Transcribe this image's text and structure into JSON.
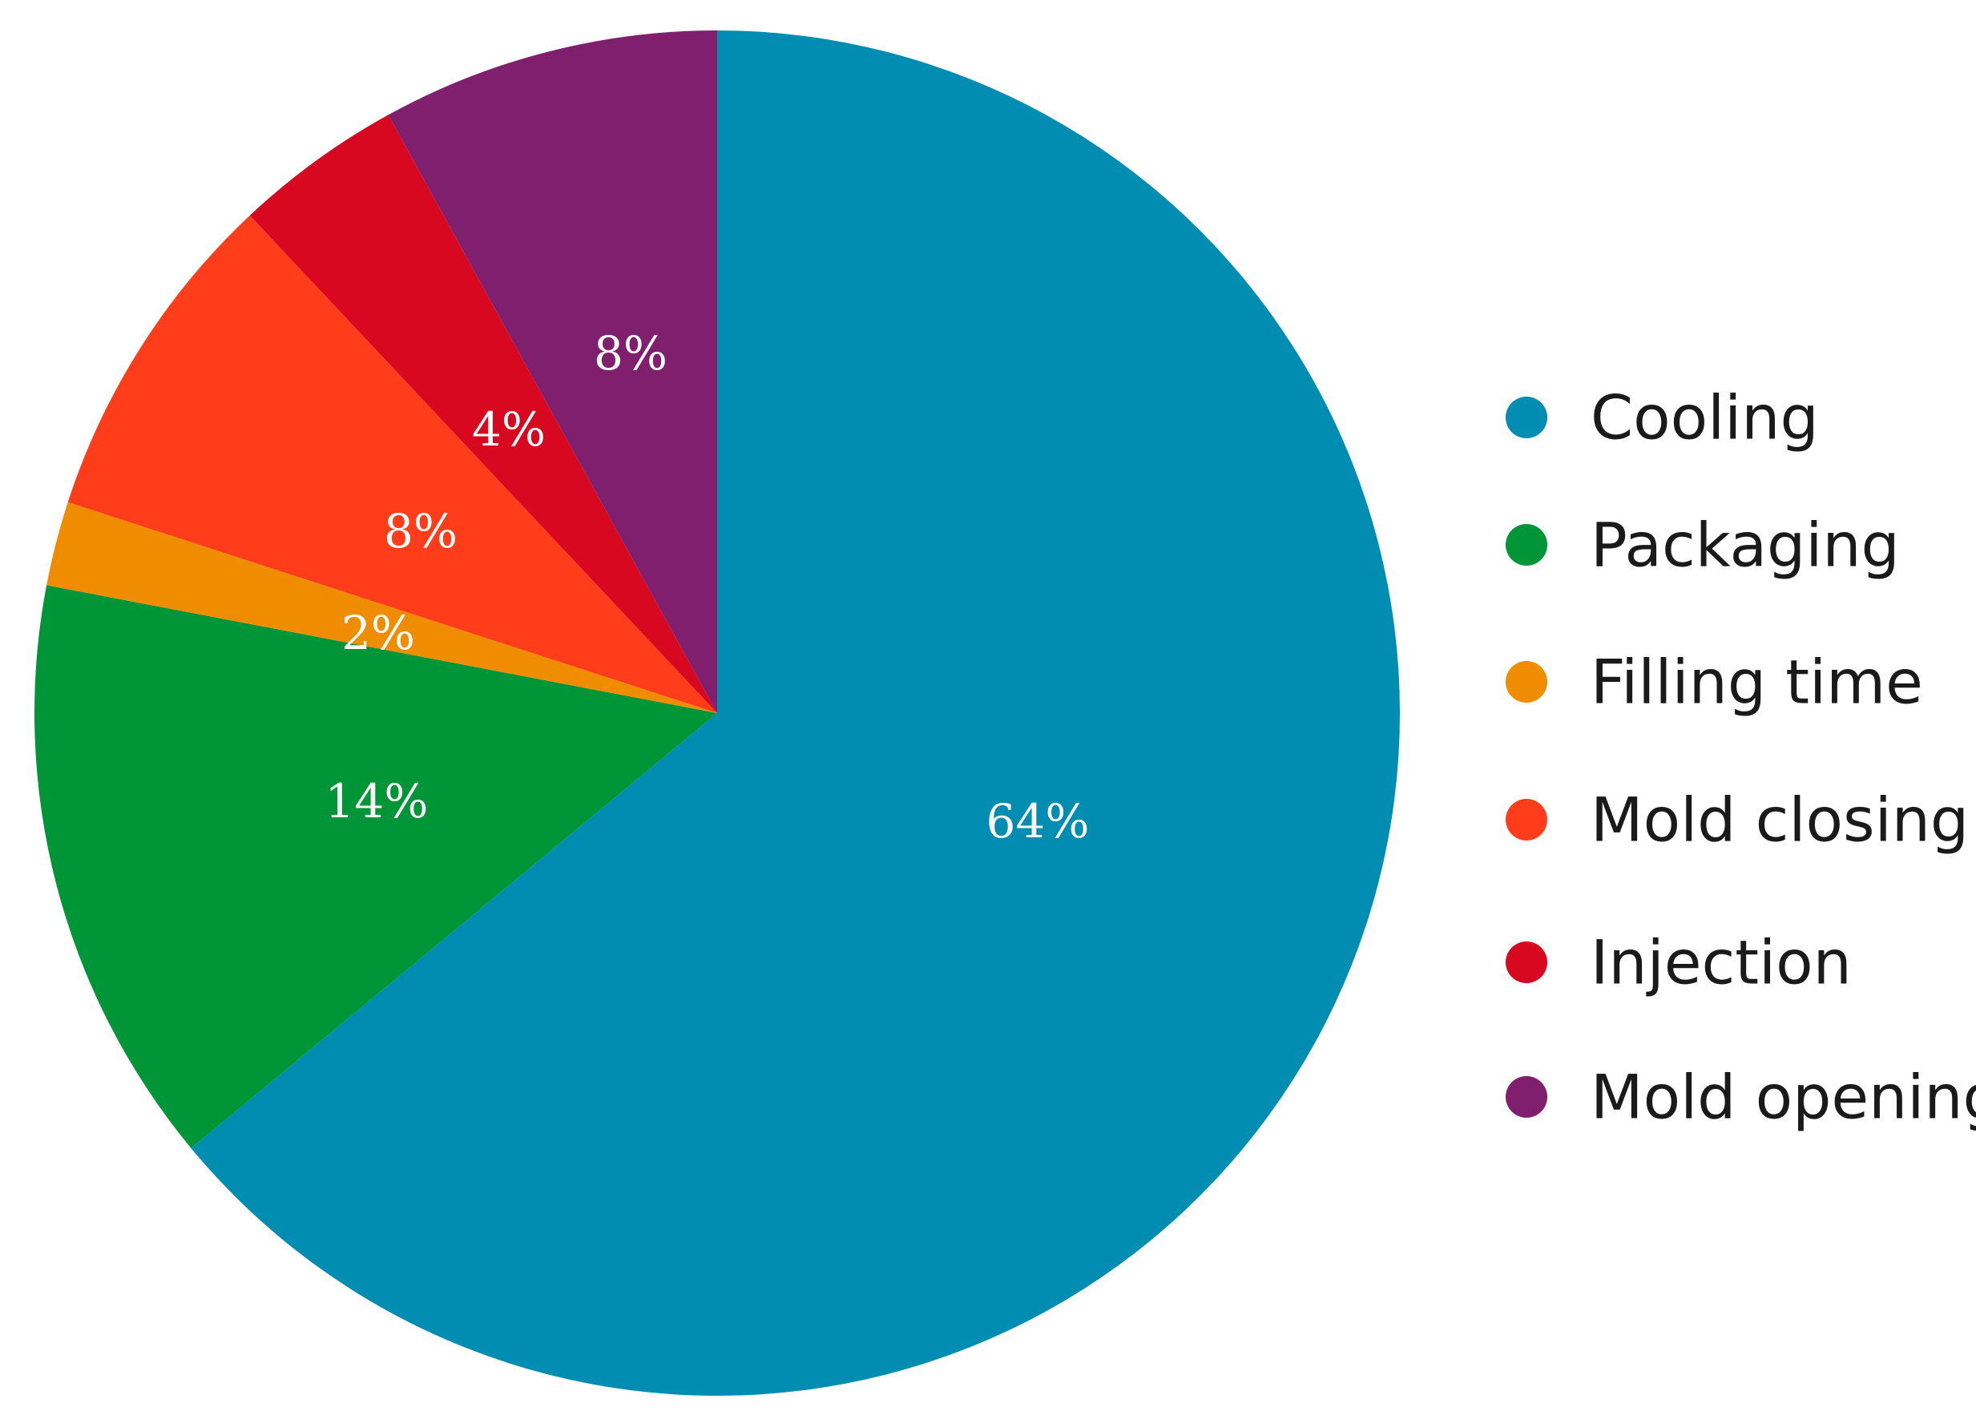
{
  "chart_data": {
    "type": "pie",
    "title": "",
    "categories": [
      "Cooling",
      "Packaging",
      "Filling time",
      "Mold closing",
      "Injection",
      "Mold opening"
    ],
    "values": [
      64,
      14,
      2,
      8,
      4,
      8
    ],
    "labels": [
      "64%",
      "14%",
      "2%",
      "8%",
      "4%",
      "8%"
    ],
    "colors": [
      "#008db1",
      "#009536",
      "#f08c00",
      "#ff3d1a",
      "#d7081f",
      "#7f1f6e"
    ],
    "start_angle_deg": 0,
    "direction": "clockwise",
    "legend": "right"
  }
}
